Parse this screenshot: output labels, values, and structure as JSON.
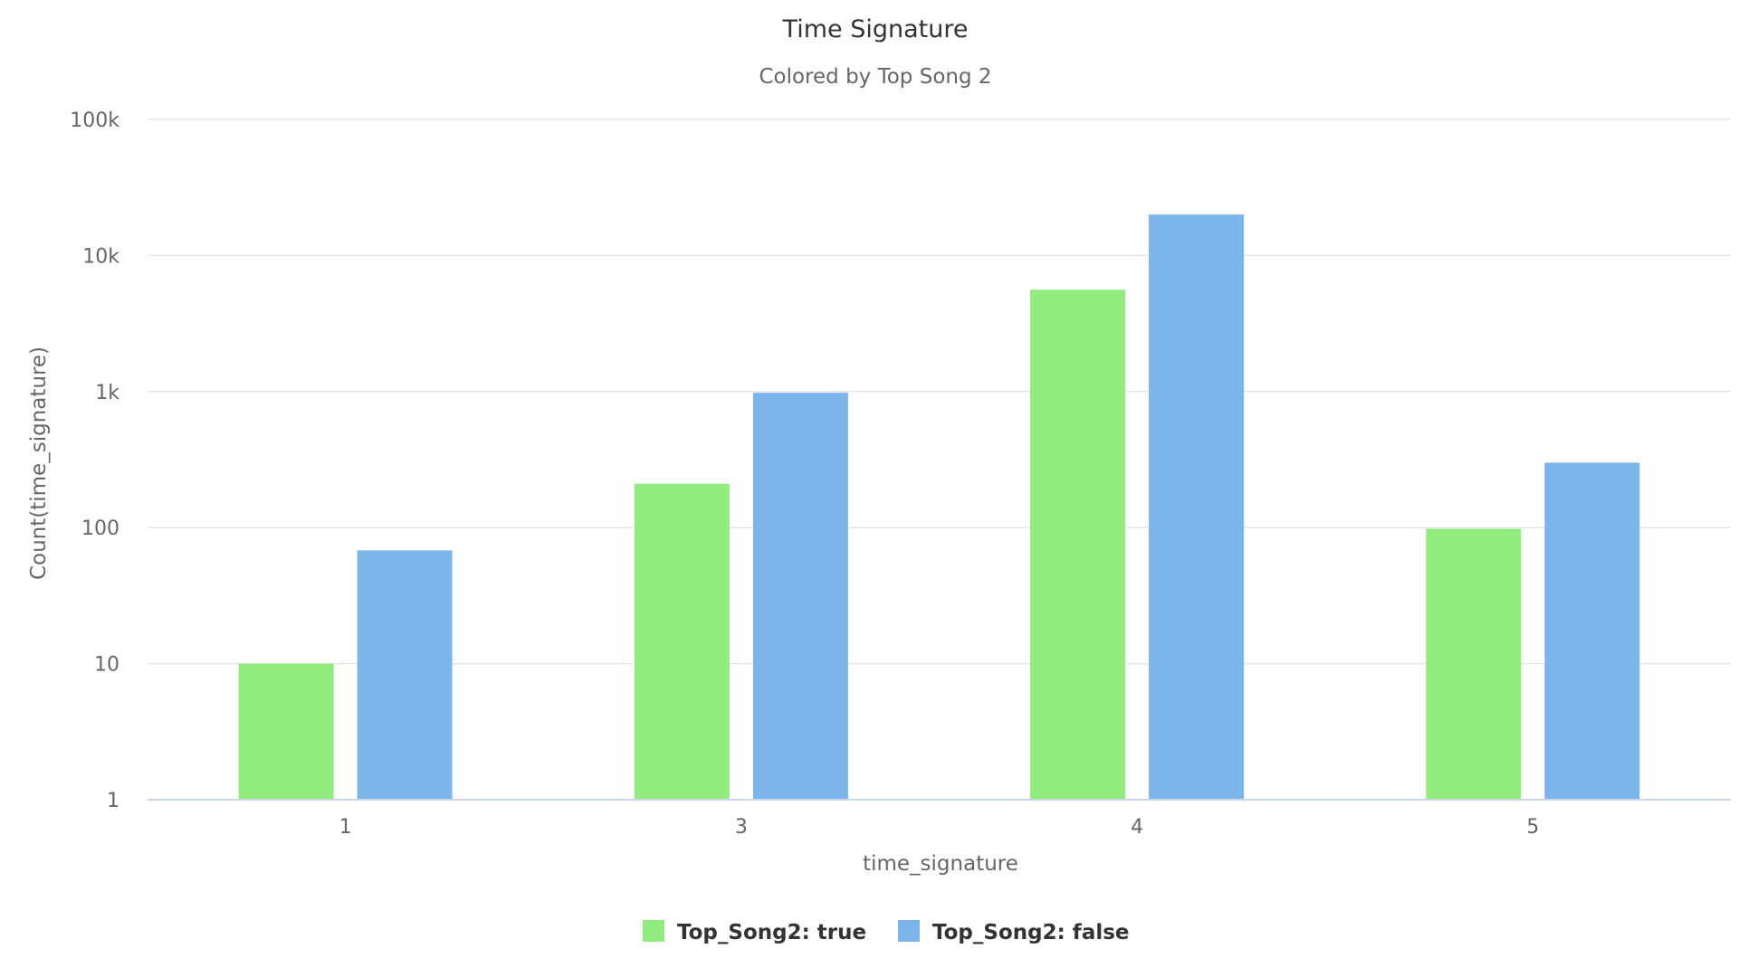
{
  "chart_data": {
    "type": "bar",
    "title": "Time Signature",
    "subtitle": "Colored by Top Song 2",
    "xlabel": "time_signature",
    "ylabel": "Count(time_signature)",
    "y_scale": "log",
    "ylim": [
      1,
      100000
    ],
    "y_ticks": [
      1,
      10,
      100,
      1000,
      10000,
      100000
    ],
    "y_tick_labels": [
      "1",
      "10",
      "100",
      "1k",
      "10k",
      "100k"
    ],
    "categories": [
      "1",
      "3",
      "4",
      "5"
    ],
    "series": [
      {
        "name": "Top_Song2: true",
        "color": "#90ed7d",
        "values": [
          10,
          210,
          5600,
          98
        ]
      },
      {
        "name": "Top_Song2: false",
        "color": "#7cb5ec",
        "values": [
          68,
          980,
          20000,
          300
        ]
      }
    ],
    "grid": true,
    "legend_position": "bottom-center"
  }
}
